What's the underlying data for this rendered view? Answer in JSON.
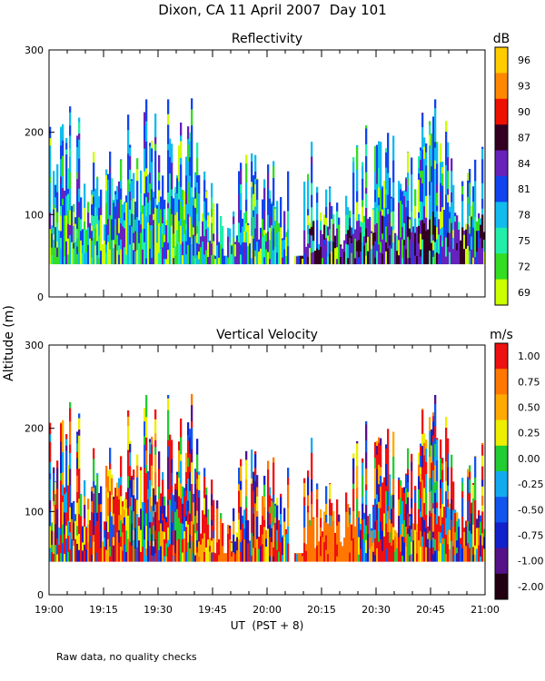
{
  "chart_data": [
    {
      "type": "heatmap",
      "title": "Dixon, CA 11 April 2007  Day 101",
      "subtitle": "Reflectivity",
      "ylabel": "Altitude (m)",
      "ylim": [
        0,
        300
      ],
      "yticks": [
        "0",
        "100",
        "200",
        "300"
      ],
      "colorbar_unit": "dB",
      "colorbar_labels": [
        "69",
        "72",
        "75",
        "78",
        "81",
        "84",
        "87",
        "90",
        "93",
        "96"
      ],
      "colorbar_colors": [
        "#ccff00",
        "#33dd22",
        "#22eeaa",
        "#11bbee",
        "#1144ee",
        "#6622bb",
        "#330022",
        "#ee1100",
        "#ff8800",
        "#ffcc00"
      ],
      "gate_altitudes": [
        40,
        300
      ],
      "gap_minutes": [
        [
          66,
          67.5
        ]
      ]
    },
    {
      "type": "heatmap",
      "subtitle": "Vertical Velocity",
      "ylim": [
        0,
        300
      ],
      "yticks": [
        "0",
        "100",
        "200",
        "300"
      ],
      "colorbar_unit": "m/s",
      "colorbar_labels": [
        "1.00",
        "0.75",
        "0.50",
        "0.25",
        "0.00",
        "-0.25",
        "-0.50",
        "-0.75",
        "-1.00",
        "-2.00"
      ],
      "colorbar_colors": [
        "#ee1111",
        "#ff7700",
        "#ffaa00",
        "#eeee00",
        "#22cc33",
        "#11aaee",
        "#1155ee",
        "#1122cc",
        "#551188",
        "#220011"
      ],
      "xticks": [
        "19:00",
        "19:15",
        "19:30",
        "19:45",
        "20:00",
        "20:15",
        "20:30",
        "20:45",
        "21:00"
      ],
      "xlabel": "UT  (PST + 8)",
      "x_range_minutes": [
        0,
        120
      ]
    }
  ],
  "footnote": "Raw data, no quality checks"
}
